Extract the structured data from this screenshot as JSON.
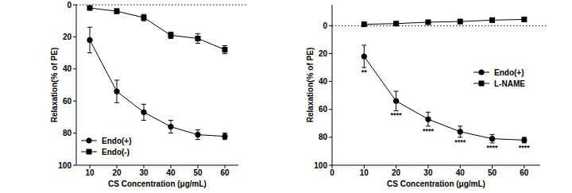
{
  "chart_data": [
    {
      "type": "line",
      "x_label": "CS Concentration (μg/mL)",
      "y_label": "Relaxation(% of PE)",
      "x": [
        10,
        20,
        30,
        40,
        50,
        60
      ],
      "xlim": [
        5,
        65
      ],
      "xticks": [
        10,
        20,
        30,
        40,
        50,
        60
      ],
      "ylim": [
        100,
        0
      ],
      "yticks": [
        0,
        20,
        40,
        60,
        80,
        100
      ],
      "hline": 0,
      "legend": "lower left",
      "series": [
        {
          "name": "Endo(+)",
          "color": "#000000",
          "marker": "circle",
          "line_style": "solid",
          "values": [
            22,
            54,
            67,
            76,
            81,
            82
          ],
          "errors": [
            8,
            7,
            5,
            4,
            3,
            2
          ]
        },
        {
          "name": "Endo(-)",
          "color": "#000000",
          "marker": "square",
          "line_style": "solid",
          "values": [
            2,
            4,
            8,
            19,
            21,
            28
          ],
          "errors": [
            1,
            1.5,
            2,
            2,
            3,
            2.5
          ]
        }
      ]
    },
    {
      "type": "line",
      "x_label": "CS Concentration (μg/mL)",
      "y_label": "Relaxation(% of PE)",
      "x": [
        10,
        20,
        30,
        40,
        50,
        60
      ],
      "xlim": [
        0,
        65
      ],
      "xticks": [
        0,
        10,
        20,
        30,
        40,
        50,
        60
      ],
      "ylim": [
        100,
        -15
      ],
      "yticks": [
        0,
        20,
        40,
        60,
        80,
        100
      ],
      "hline": 0,
      "legend": "upper right",
      "series": [
        {
          "name": "Endo(+)",
          "color": "#000000",
          "marker": "circle",
          "line_style": "solid",
          "values": [
            22,
            54,
            67,
            76,
            81,
            82
          ],
          "errors": [
            8,
            7,
            5,
            4,
            3,
            2
          ],
          "significance": [
            "**",
            "****",
            "****",
            "****",
            "****",
            "****"
          ]
        },
        {
          "name": "L-NAME",
          "color": "#000000",
          "marker": "square",
          "line_style": "solid",
          "values": [
            -1,
            -1.5,
            -2.5,
            -3,
            -4,
            -4.5
          ],
          "errors": [
            0.5,
            0.5,
            0.8,
            1.5,
            1.5,
            1
          ]
        }
      ]
    }
  ]
}
